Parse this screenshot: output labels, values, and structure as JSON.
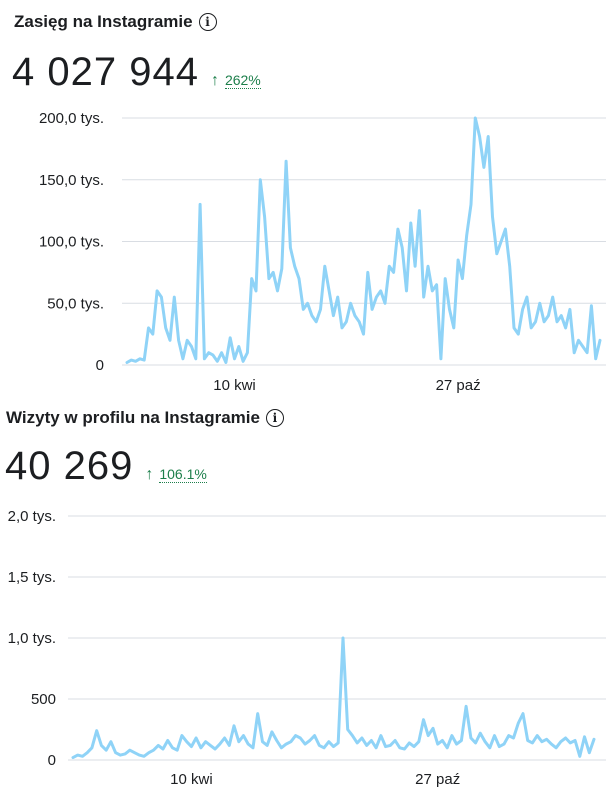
{
  "panels": [
    {
      "title": "Zasięg na Instagramie",
      "value": "4 027 944",
      "change_arrow": "↑",
      "change_pct": "262%",
      "info_icon": "info-icon"
    },
    {
      "title": "Wizyty w profilu na Instagramie",
      "value": "40 269",
      "change_arrow": "↑",
      "change_pct": "106.1%",
      "info_icon": "info-icon"
    }
  ],
  "colors": {
    "line": "#8fd3f7",
    "grid": "#d9dde3",
    "positive": "#1d7f4b"
  },
  "chart_data": [
    {
      "type": "line",
      "ylim": [
        0,
        200000
      ],
      "y_ticks": [
        0,
        50000,
        100000,
        150000,
        200000
      ],
      "y_tick_labels": [
        "0",
        "50,0 tys.",
        "100,0 tys.",
        "150,0 tys.",
        "200,0 tys."
      ],
      "x_tick_labels": [
        "10 kwi",
        "27 paź"
      ],
      "x_tick_index": [
        25,
        77
      ],
      "grid": true,
      "values": [
        2000,
        4000,
        3000,
        5000,
        4000,
        30000,
        25000,
        60000,
        55000,
        30000,
        20000,
        55000,
        20000,
        5000,
        20000,
        15000,
        5000,
        130000,
        5000,
        10000,
        8000,
        3000,
        10000,
        2000,
        22000,
        5000,
        15000,
        3000,
        10000,
        70000,
        60000,
        150000,
        120000,
        70000,
        75000,
        60000,
        78000,
        165000,
        95000,
        80000,
        70000,
        45000,
        50000,
        40000,
        35000,
        45000,
        80000,
        60000,
        40000,
        55000,
        30000,
        35000,
        50000,
        40000,
        35000,
        25000,
        75000,
        45000,
        55000,
        60000,
        50000,
        80000,
        75000,
        110000,
        95000,
        60000,
        115000,
        80000,
        125000,
        55000,
        80000,
        60000,
        65000,
        5000,
        70000,
        45000,
        30000,
        85000,
        70000,
        105000,
        130000,
        200000,
        185000,
        160000,
        185000,
        120000,
        90000,
        100000,
        110000,
        80000,
        30000,
        25000,
        45000,
        55000,
        30000,
        35000,
        50000,
        35000,
        40000,
        55000,
        35000,
        40000,
        30000,
        45000,
        10000,
        20000,
        15000,
        10000,
        48000,
        5000,
        20000
      ]
    },
    {
      "type": "line",
      "ylim": [
        0,
        2000
      ],
      "y_ticks": [
        0,
        500,
        1000,
        1500,
        2000
      ],
      "y_tick_labels": [
        "0",
        "500",
        "1,0 tys.",
        "1,5 tys.",
        "2,0 tys."
      ],
      "x_tick_labels": [
        "10 kwi",
        "27 paź"
      ],
      "x_tick_index": [
        25,
        77
      ],
      "grid": true,
      "values": [
        20,
        40,
        30,
        60,
        100,
        240,
        120,
        80,
        150,
        60,
        40,
        50,
        80,
        60,
        40,
        30,
        60,
        80,
        120,
        90,
        160,
        100,
        80,
        200,
        150,
        110,
        180,
        100,
        150,
        120,
        90,
        130,
        180,
        120,
        280,
        150,
        200,
        130,
        100,
        380,
        150,
        120,
        230,
        160,
        100,
        130,
        150,
        200,
        180,
        130,
        160,
        200,
        120,
        100,
        150,
        110,
        140,
        1000,
        250,
        200,
        140,
        180,
        120,
        160,
        100,
        200,
        110,
        120,
        160,
        100,
        90,
        140,
        110,
        150,
        330,
        200,
        260,
        130,
        160,
        100,
        200,
        130,
        160,
        440,
        180,
        140,
        220,
        150,
        100,
        200,
        110,
        130,
        200,
        180,
        300,
        380,
        160,
        140,
        200,
        150,
        170,
        130,
        100,
        150,
        180,
        140,
        160,
        30,
        190,
        60,
        170
      ]
    }
  ]
}
